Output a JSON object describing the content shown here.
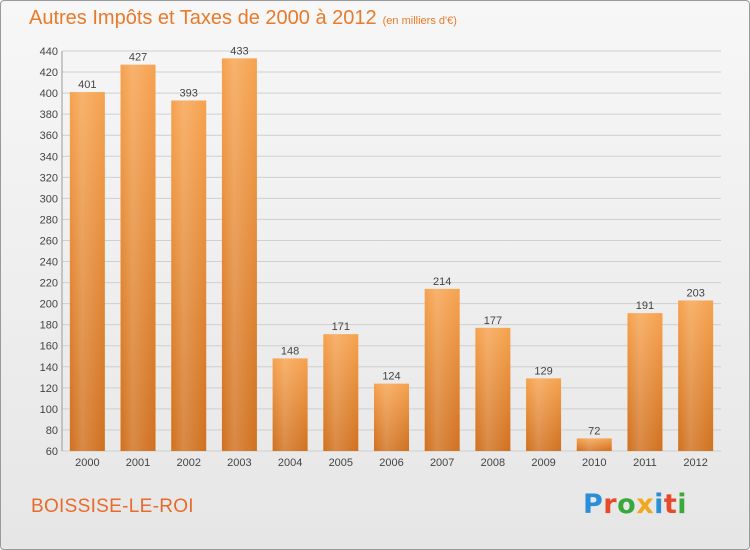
{
  "header": {
    "title": "Autres Impôts et Taxes de 2000 à 2012",
    "subtitle": "(en milliers d'€)"
  },
  "footer": {
    "commune": "BOISSISE-LE-ROI",
    "logo": "Proxiti"
  },
  "colors": {
    "bar": "#f0923a",
    "bar_dark": "#d0701e",
    "accent": "#e87a2a"
  },
  "chart_data": {
    "type": "bar",
    "title": "Autres Impôts et Taxes de 2000 à 2012",
    "subtitle": "(en milliers d'€)",
    "categories": [
      "2000",
      "2001",
      "2002",
      "2003",
      "2004",
      "2005",
      "2006",
      "2007",
      "2008",
      "2009",
      "2010",
      "2011",
      "2012"
    ],
    "values": [
      401,
      427,
      393,
      433,
      148,
      171,
      124,
      214,
      177,
      129,
      72,
      191,
      203
    ],
    "ylim": [
      60,
      440
    ],
    "yticks": [
      60,
      80,
      100,
      120,
      140,
      160,
      180,
      200,
      220,
      240,
      260,
      280,
      300,
      320,
      340,
      360,
      380,
      400,
      420,
      440
    ],
    "grid": true,
    "legend": "none"
  }
}
